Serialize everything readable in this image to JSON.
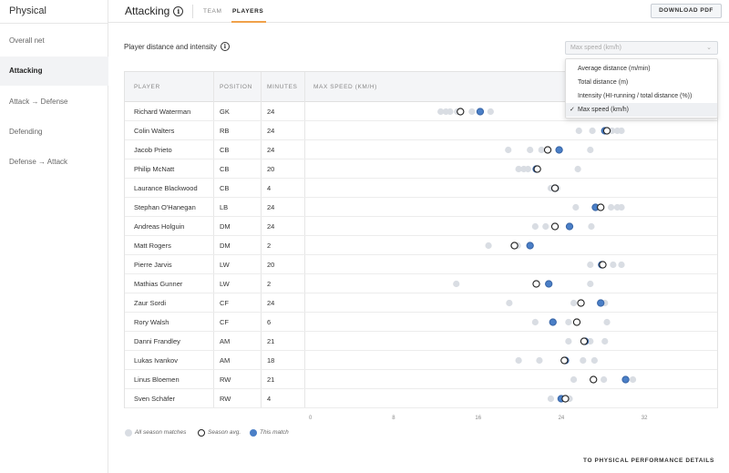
{
  "sidebar": {
    "title": "Physical",
    "items": [
      {
        "label": "Overall net",
        "active": false
      },
      {
        "label": "Attacking",
        "active": true
      },
      {
        "label": "Attack → Defense",
        "active": false
      },
      {
        "label": "Defending",
        "active": false
      },
      {
        "label": "Defense → Attack",
        "active": false
      }
    ]
  },
  "header": {
    "title": "Attacking",
    "tabs": [
      {
        "label": "TEAM",
        "active": false
      },
      {
        "label": "PLAYERS",
        "active": true
      }
    ],
    "download_label": "DOWNLOAD PDF"
  },
  "section": {
    "title": "Player distance and intensity",
    "select_value": "Max speed (km/h)",
    "dropdown_options": [
      {
        "label": "Average distance (m/min)",
        "selected": false
      },
      {
        "label": "Total distance (m)",
        "selected": false
      },
      {
        "label": "Intensity (HI-running / total distance (%))",
        "selected": false
      },
      {
        "label": "Max speed (km/h)",
        "selected": true
      }
    ]
  },
  "table": {
    "columns": [
      "PLAYER",
      "POSITION",
      "MINUTES",
      "MAX SPEED (KM/H)"
    ],
    "rows": [
      {
        "player": "Richard Waterman",
        "position": "GK",
        "minutes": "24"
      },
      {
        "player": "Colin Walters",
        "position": "RB",
        "minutes": "24"
      },
      {
        "player": "Jacob Prieto",
        "position": "CB",
        "minutes": "24"
      },
      {
        "player": "Philip McNatt",
        "position": "CB",
        "minutes": "20"
      },
      {
        "player": "Laurance Blackwood",
        "position": "CB",
        "minutes": "4"
      },
      {
        "player": "Stephan O'Hanegan",
        "position": "LB",
        "minutes": "24"
      },
      {
        "player": "Andreas Holguin",
        "position": "DM",
        "minutes": "24"
      },
      {
        "player": "Matt Rogers",
        "position": "DM",
        "minutes": "2"
      },
      {
        "player": "Pierre Jarvis",
        "position": "LW",
        "minutes": "20"
      },
      {
        "player": "Mathias Gunner",
        "position": "LW",
        "minutes": "2"
      },
      {
        "player": "Zaur Sordi",
        "position": "CF",
        "minutes": "24"
      },
      {
        "player": "Rory Walsh",
        "position": "CF",
        "minutes": "6"
      },
      {
        "player": "Danni Frandley",
        "position": "AM",
        "minutes": "21"
      },
      {
        "player": "Lukas Ivankov",
        "position": "AM",
        "minutes": "18"
      },
      {
        "player": "Linus Bloemen",
        "position": "RW",
        "minutes": "21"
      },
      {
        "player": "Sven Schäfer",
        "position": "RW",
        "minutes": "4"
      }
    ]
  },
  "chart_data": {
    "type": "scatter",
    "xlabel": "MAX SPEED (KM/H)",
    "xlim": [
      0,
      40
    ],
    "x_ticks": [
      0,
      8,
      16,
      24,
      32
    ],
    "series_names": [
      "All season matches",
      "Season avg.",
      "This match"
    ],
    "colors": {
      "season": "#d9dde3",
      "avg": "#ffffff",
      "avg_stroke": "#222222",
      "match": "#4a7fc7",
      "match_stroke": "#3a67a8"
    },
    "players": [
      {
        "player": "Richard Waterman",
        "season": [
          12.6,
          13.1,
          13.5,
          14.2,
          15.6,
          17.4
        ],
        "avg": 14.5,
        "match": 16.4
      },
      {
        "player": "Colin Walters",
        "season": [
          25.9,
          27.2,
          29.1,
          29.6,
          30.0
        ],
        "avg": 28.6,
        "match": 28.4
      },
      {
        "player": "Jacob Prieto",
        "season": [
          19.1,
          21.2,
          22.3,
          27.0
        ],
        "avg": 22.9,
        "match": 24.0
      },
      {
        "player": "Philip McNatt",
        "season": [
          20.1,
          20.6,
          21.0,
          25.8
        ],
        "avg": 21.9,
        "match": 21.8
      },
      {
        "player": "Laurance Blackwood",
        "season": [
          23.2,
          23.8
        ],
        "avg": 23.6,
        "match": 23.6
      },
      {
        "player": "Stephan O'Hanegan",
        "season": [
          25.6,
          29.0,
          29.6,
          30.0
        ],
        "avg": 28.0,
        "match": 27.5
      },
      {
        "player": "Andreas Holguin",
        "season": [
          21.7,
          22.7,
          27.1
        ],
        "avg": 23.6,
        "match": 25.0
      },
      {
        "player": "Matt Rogers",
        "season": [
          17.2,
          19.6,
          20.0
        ],
        "avg": 19.7,
        "match": 21.2
      },
      {
        "player": "Pierre Jarvis",
        "season": [
          27.0,
          29.2,
          30.0
        ],
        "avg": 28.2,
        "match": 28.1
      },
      {
        "player": "Mathias Gunner",
        "season": [
          14.1,
          23.0,
          27.0
        ],
        "avg": 21.8,
        "match": 23.0
      },
      {
        "player": "Zaur Sordi",
        "season": [
          19.2,
          25.4,
          28.4
        ],
        "avg": 26.1,
        "match": 28.0
      },
      {
        "player": "Rory Walsh",
        "season": [
          21.7,
          24.9,
          28.6
        ],
        "avg": 25.7,
        "match": 23.4
      },
      {
        "player": "Danni Frandley",
        "season": [
          24.9,
          27.0,
          28.4
        ],
        "avg": 26.4,
        "match": 26.5
      },
      {
        "player": "Lukas Ivankov",
        "season": [
          20.1,
          22.1,
          26.3,
          27.4
        ],
        "avg": 24.5,
        "match": 24.6
      },
      {
        "player": "Linus Bloemen",
        "season": [
          25.4,
          28.3,
          31.1
        ],
        "avg": 27.3,
        "match": 30.4
      },
      {
        "player": "Sven Schäfer",
        "season": [
          23.2,
          25.0
        ],
        "avg": 24.6,
        "match": 24.2
      }
    ]
  },
  "legend": {
    "season": "All season matches",
    "avg": "Season avg.",
    "match": "This match"
  },
  "footer": {
    "link_label": "TO PHYSICAL PERFORMANCE DETAILS"
  }
}
